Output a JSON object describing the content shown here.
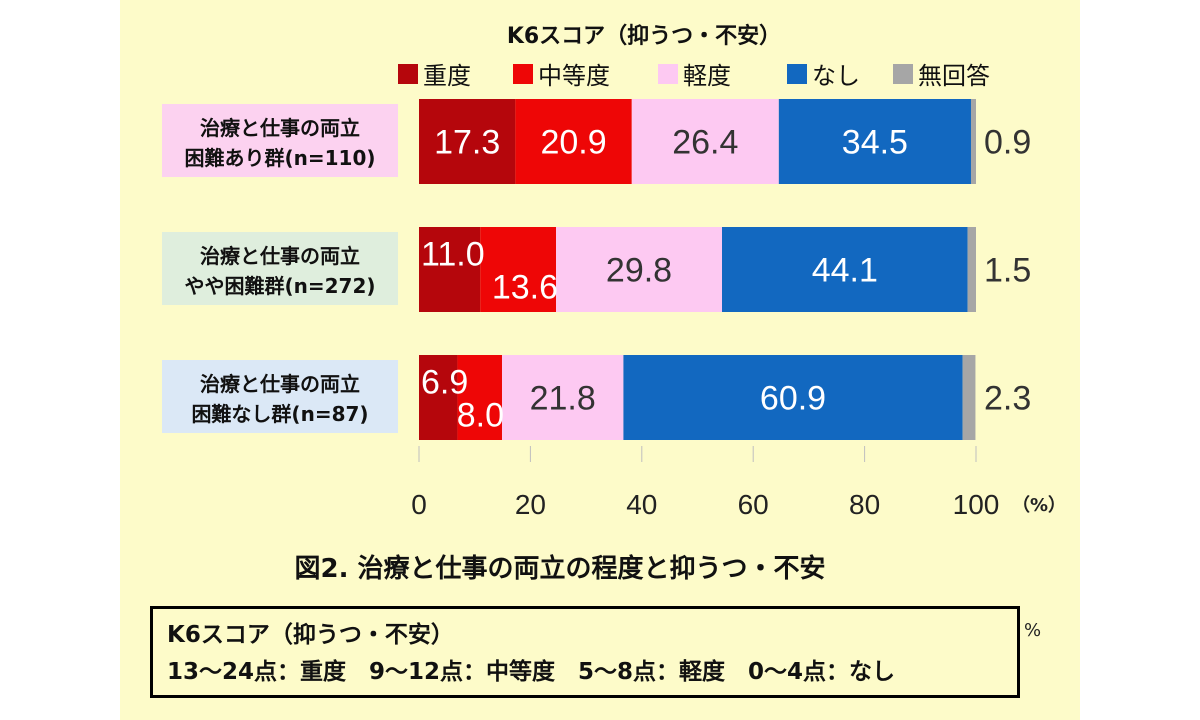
{
  "chart_data": {
    "type": "bar",
    "orientation": "horizontal",
    "stacked": true,
    "title": "K6スコア（抑うつ・不安）",
    "categories": [
      [
        "治療と仕事の両立",
        "困難あり群(n=110)"
      ],
      [
        "治療と仕事の両立",
        "やや困難群(n=272)"
      ],
      [
        "治療と仕事の両立",
        "困難なし群(n=87)"
      ]
    ],
    "series": [
      {
        "name": "重度",
        "color": "#b5060c",
        "values": [
          17.3,
          11.0,
          6.9
        ]
      },
      {
        "name": "中等度",
        "color": "#ee0606",
        "values": [
          20.9,
          13.6,
          8.0
        ]
      },
      {
        "name": "軽度",
        "color": "#fdc9f2",
        "values": [
          26.4,
          29.8,
          21.8
        ]
      },
      {
        "name": "なし",
        "color": "#1268c0",
        "values": [
          34.5,
          44.1,
          60.9
        ]
      },
      {
        "name": "無回答",
        "color": "#a6a6a6",
        "values": [
          0.9,
          1.5,
          2.3
        ]
      }
    ],
    "category_label_backgrounds": [
      "#fcd2f0",
      "#dfeedd",
      "#dbe8f6"
    ],
    "xlim": [
      0,
      100
    ],
    "xticks": [
      0,
      20,
      40,
      60,
      80,
      100
    ],
    "xunit": "（%）",
    "legend_position": "top",
    "grid": false
  },
  "caption": "図2. 治療と仕事の両立の程度と抑うつ・不安",
  "note": {
    "line1": "K6スコア（抑うつ・不安）",
    "line2": "13～24点：重度　9～12点：中等度　5～8点：軽度　0～4点：なし",
    "unit": "%"
  }
}
